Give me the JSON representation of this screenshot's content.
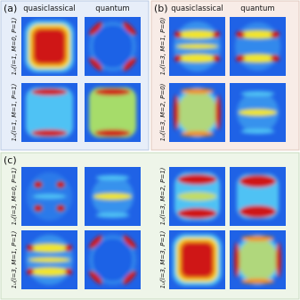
{
  "panels": [
    {
      "label": "(a)",
      "columns": [
        "quasiclassical",
        "quantum"
      ],
      "rows": [
        "1ᵤ(l=1, M=0, P=1)",
        "1ᵤ(l=1, M=1, P=1)"
      ]
    },
    {
      "label": "(b)",
      "columns": [
        "quasiclassical",
        "quantum"
      ],
      "rows": [
        "1ᵤ(l=3, M=1, P=0)",
        "1ᵤ(l=3, M=2, P=0)"
      ]
    },
    {
      "label": "(c)",
      "rows": [
        "1ᵤ(l=3, M=0, P=1)",
        "1ᵤ(l=3, M=1, P=1)",
        "1ᵤ(l=3, M=2, P=1)",
        "1ᵤ(l=3, M=3, P=1)"
      ]
    }
  ]
}
